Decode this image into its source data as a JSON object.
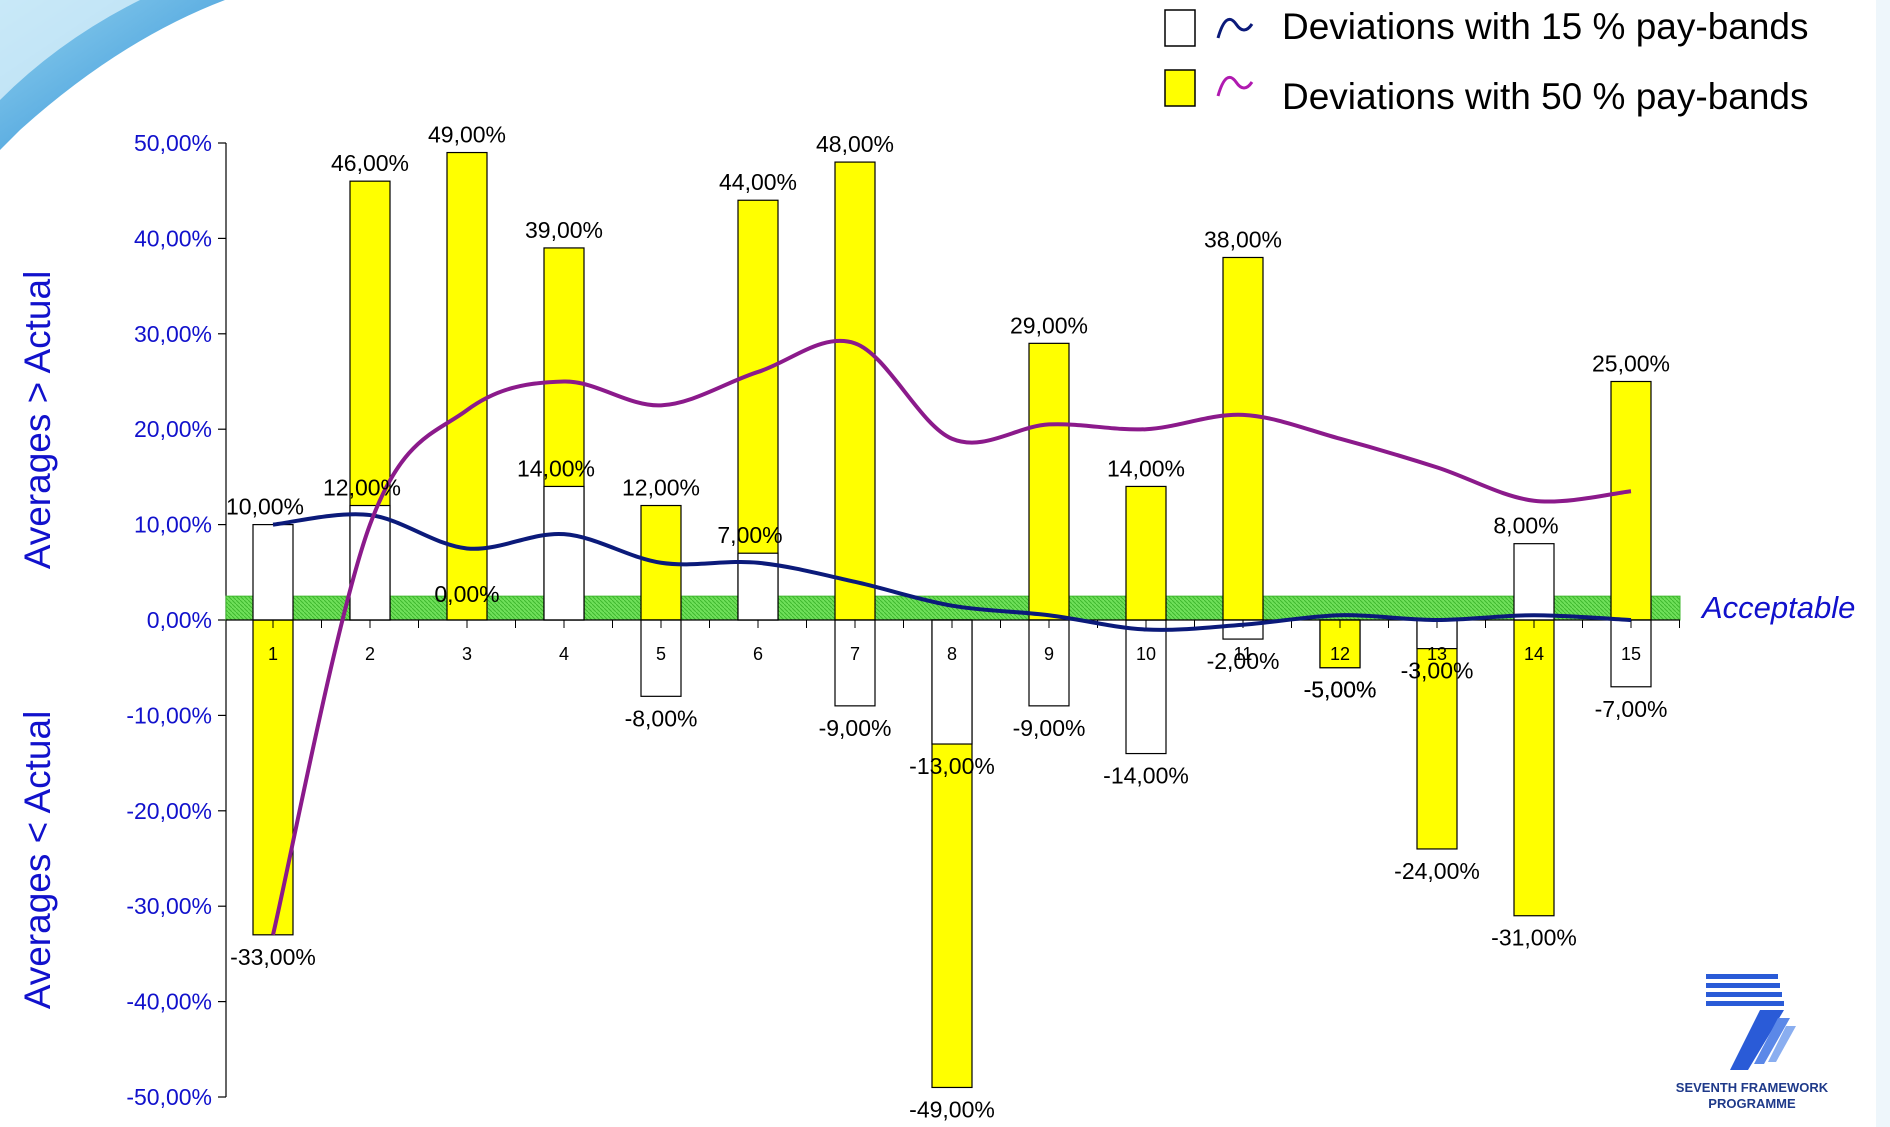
{
  "chart_data": {
    "type": "bar",
    "categories": [
      "1",
      "2",
      "3",
      "4",
      "5",
      "6",
      "7",
      "8",
      "9",
      "10",
      "11",
      "12",
      "13",
      "14",
      "15"
    ],
    "series": [
      {
        "name": "Deviations with 15 % pay-bands",
        "color": "#ffffff",
        "line_color": "#0b1a7a",
        "values": [
          10,
          12,
          0,
          14,
          -8,
          7,
          -9,
          -13,
          -9,
          -14,
          -2,
          -5,
          -3,
          8,
          -7
        ],
        "labels": [
          "10,00%",
          "12,00%",
          "0,00%",
          "14,00%",
          "-8,00%",
          "7,00%",
          "-9,00%",
          "-13,00%",
          "-9,00%",
          "-14,00%",
          "-2,00%",
          "-5,00%",
          "-3,00%",
          "8,00%",
          "-7,00%"
        ],
        "trend": [
          10,
          11,
          7.5,
          9,
          6,
          6,
          4,
          1.5,
          0.5,
          -1,
          -0.5,
          0.5,
          0,
          0.5,
          0
        ]
      },
      {
        "name": "Deviations with 50 % pay-bands",
        "color": "#ffff00",
        "line_color": "#8b1a8b",
        "values": [
          -33,
          46,
          49,
          39,
          12,
          44,
          48,
          -49,
          29,
          14,
          38,
          -5,
          -24,
          -31,
          25
        ],
        "labels": [
          "-33,00%",
          "46,00%",
          "49,00%",
          "39,00%",
          "12,00%",
          "44,00%",
          "48,00%",
          "-49,00%",
          "29,00%",
          "14,00%",
          "38,00%",
          "-5,00%",
          "-24,00%",
          "-31,00%",
          "25,00%"
        ],
        "trend": [
          -33,
          10,
          22,
          25,
          22.5,
          26,
          29,
          19,
          20.5,
          20,
          21.5,
          19,
          16,
          12.5,
          13.5
        ]
      }
    ],
    "ylim": [
      -50,
      50
    ],
    "yticks": [
      50,
      40,
      30,
      20,
      10,
      0,
      -10,
      -20,
      -30,
      -40,
      -50
    ],
    "ytick_labels": [
      "50,00%",
      "40,00%",
      "30,00%",
      "20,00%",
      "10,00%",
      "0,00%",
      "-10,00%",
      "-20,00%",
      "-30,00%",
      "-40,00%",
      "-50,00%"
    ],
    "ylabel_upper": "Averages > Actual",
    "ylabel_lower": "Averages < Actual",
    "acceptable_band": {
      "label": "Acceptable",
      "range": [
        0,
        2.5
      ],
      "color": "#66dd55"
    },
    "legend_position": "top-right",
    "grid": false
  },
  "logo": {
    "line1": "SEVENTH FRAMEWORK",
    "line2": "PROGRAMME"
  }
}
